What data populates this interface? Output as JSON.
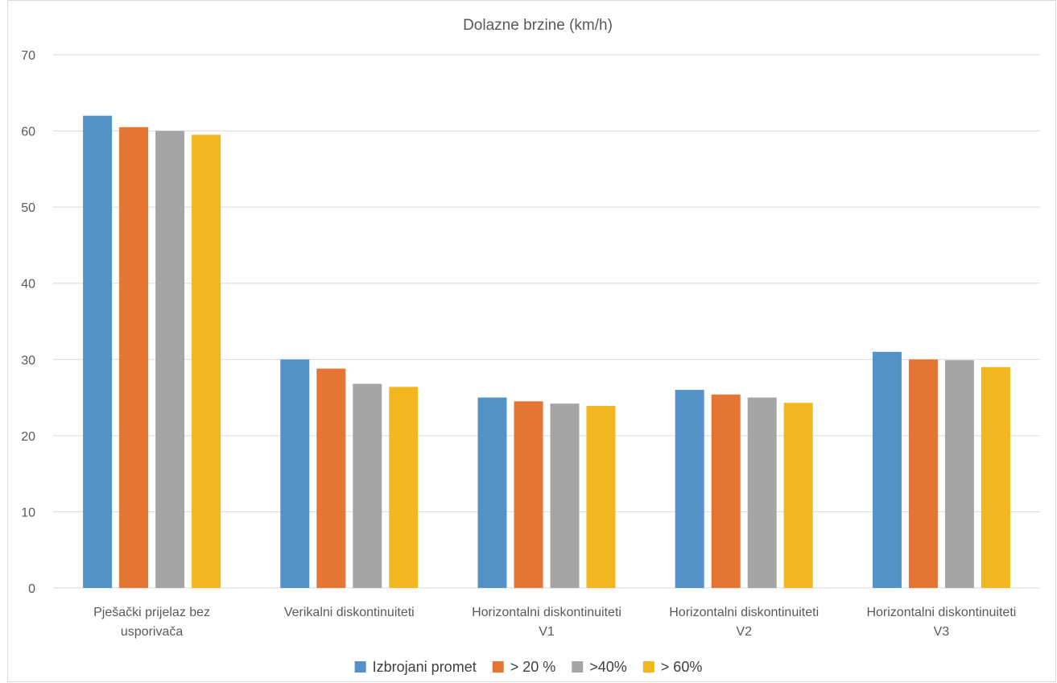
{
  "chart_data": {
    "type": "bar",
    "title": "Dolazne brzine (km/h)",
    "xlabel": "",
    "ylabel": "",
    "ylim": [
      0,
      70
    ],
    "yticks": [
      0,
      10,
      20,
      30,
      40,
      50,
      60,
      70
    ],
    "grid": true,
    "legend_position": "bottom",
    "categories": [
      [
        "Pješački prijelaz bez",
        "usporivača"
      ],
      [
        "Verikalni diskontinuiteti"
      ],
      [
        "Horizontalni diskontinuiteti",
        "V1"
      ],
      [
        "Horizontalni diskontinuiteti",
        "V2"
      ],
      [
        "Horizontalni diskontinuiteti",
        "V3"
      ]
    ],
    "series": [
      {
        "name": "Izbrojani promet",
        "color": "#5592c8",
        "values": [
          62,
          30,
          25,
          26,
          31
        ]
      },
      {
        "name": "> 20 %",
        "color": "#e47532",
        "values": [
          60.5,
          28.8,
          24.5,
          25.4,
          30
        ]
      },
      {
        "name": ">40%",
        "color": "#a5a5a5",
        "values": [
          60,
          26.8,
          24.2,
          25,
          29.9
        ]
      },
      {
        "name": "> 60%",
        "color": "#f2b71f",
        "values": [
          59.5,
          26.4,
          23.9,
          24.3,
          29
        ]
      }
    ]
  }
}
